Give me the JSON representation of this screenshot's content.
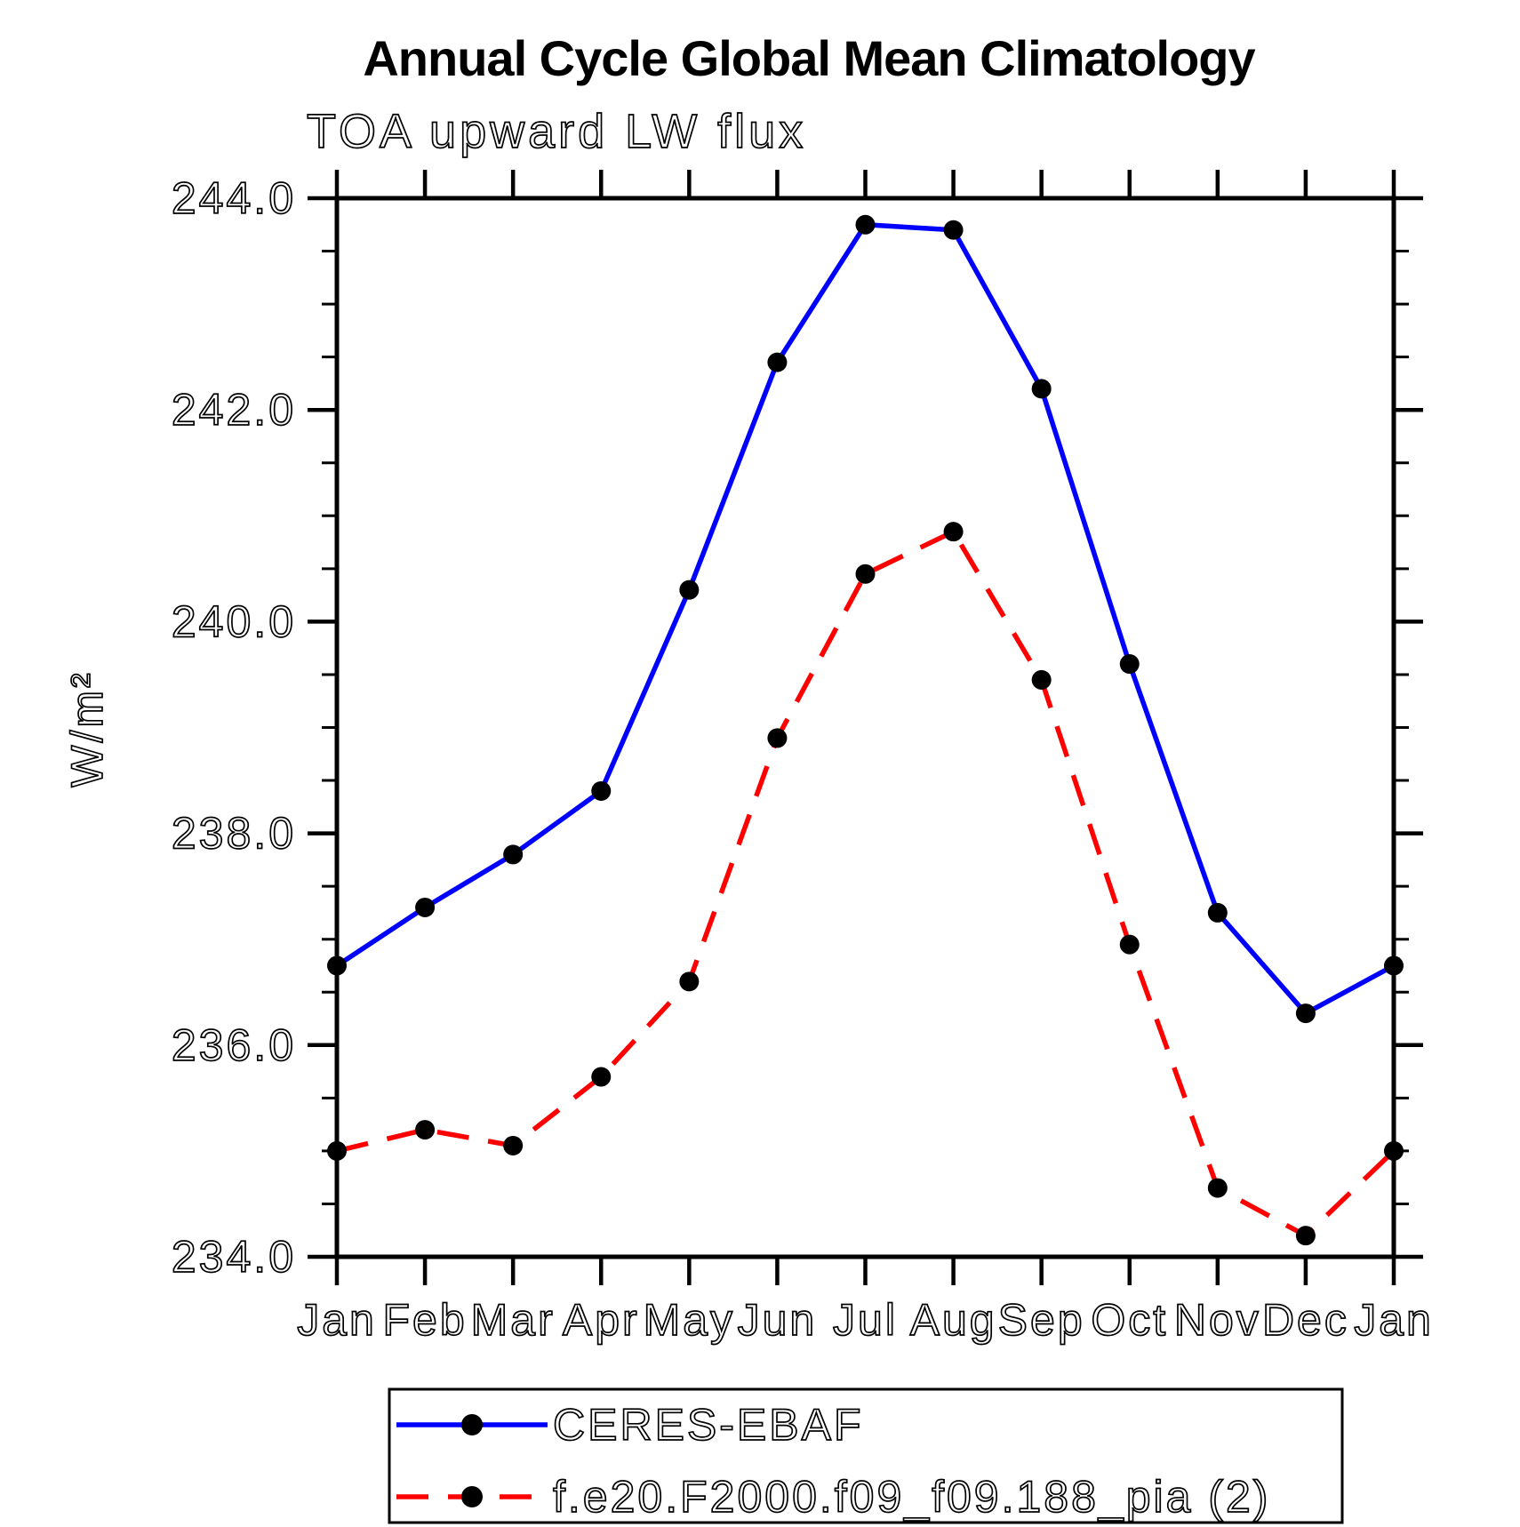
{
  "page": {
    "title": "Annual Cycle Global Mean Climatology",
    "subtitle": "TOA upward LW flux"
  },
  "chart_data": {
    "type": "line",
    "title": "Annual Cycle Global Mean Climatology",
    "subtitle": "TOA upward LW flux",
    "ylabel": "W/m²",
    "categories": [
      "Jan",
      "Feb",
      "Mar",
      "Apr",
      "May",
      "Jun",
      "Jul",
      "Aug",
      "Sep",
      "Oct",
      "Nov",
      "Dec",
      "Jan"
    ],
    "ylim": [
      234.0,
      244.0
    ],
    "ytick_step": 2.0,
    "ytick_minor_step": 0.5,
    "ytick_labels": [
      "234.0",
      "236.0",
      "238.0",
      "240.0",
      "242.0",
      "244.0"
    ],
    "grid": false,
    "legend_position": "bottom",
    "background_color": "#ffffff",
    "marker_color": "#000000",
    "series": [
      {
        "name": "CERES-EBAF",
        "color": "#0000ff",
        "line_style": "solid",
        "values": [
          236.75,
          237.3,
          237.8,
          238.4,
          240.3,
          242.45,
          243.75,
          243.7,
          242.2,
          239.6,
          237.25,
          236.3,
          236.75
        ]
      },
      {
        "name": "f.e20.F2000.f09_f09.188_pia (2)",
        "color": "#ff0000",
        "line_style": "dashed",
        "values": [
          235.0,
          235.2,
          235.05,
          235.7,
          236.6,
          238.9,
          240.45,
          240.85,
          239.45,
          236.95,
          234.65,
          234.2,
          235.0
        ]
      }
    ]
  }
}
